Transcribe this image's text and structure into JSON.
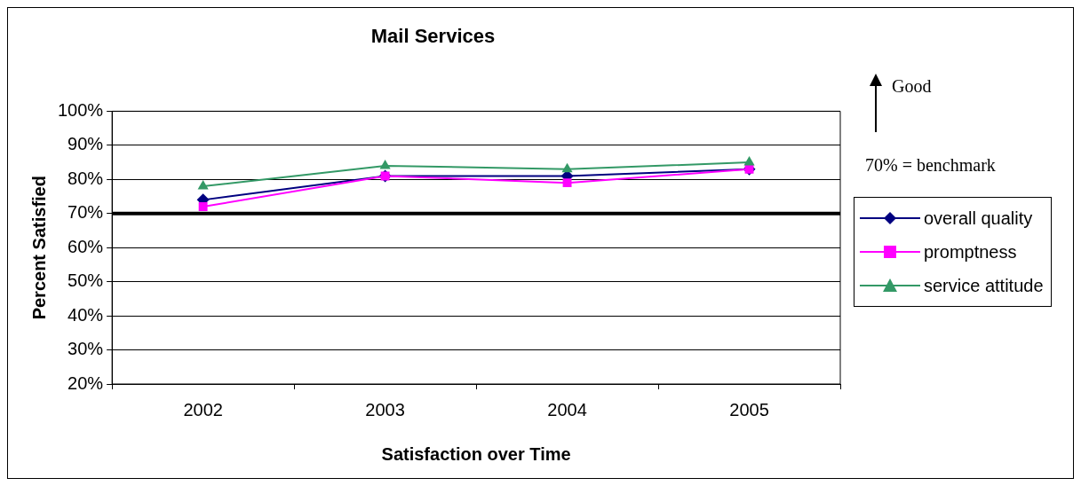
{
  "chart_data": {
    "type": "line",
    "title": "Mail Services",
    "xlabel": "Satisfaction over Time",
    "ylabel": "Percent Satisfied",
    "categories": [
      "2002",
      "2003",
      "2004",
      "2005"
    ],
    "series": [
      {
        "name": "overall quality",
        "color": "#000080",
        "marker": "diamond",
        "values": [
          74,
          81,
          81,
          83
        ]
      },
      {
        "name": "promptness",
        "color": "#ff00ff",
        "marker": "square",
        "values": [
          72,
          81,
          79,
          83
        ]
      },
      {
        "name": "service attitude",
        "color": "#339966",
        "marker": "triangle",
        "values": [
          78,
          84,
          83,
          85
        ]
      }
    ],
    "ylim": [
      20,
      100
    ],
    "yticks": [
      {
        "value": 20,
        "label": "20%"
      },
      {
        "value": 30,
        "label": "30%"
      },
      {
        "value": 40,
        "label": "40%"
      },
      {
        "value": 50,
        "label": "50%"
      },
      {
        "value": 60,
        "label": "60%"
      },
      {
        "value": 70,
        "label": "70%"
      },
      {
        "value": 80,
        "label": "80%"
      },
      {
        "value": 90,
        "label": "90%"
      },
      {
        "value": 100,
        "label": "100%"
      }
    ],
    "grid": "y",
    "legend": "right",
    "line_style": "solid",
    "ref_lines": [
      {
        "axis": "y",
        "value": 70,
        "color": "#000000",
        "line_style": "solid"
      }
    ],
    "annotations": [
      "Good",
      "70% = benchmark"
    ]
  }
}
